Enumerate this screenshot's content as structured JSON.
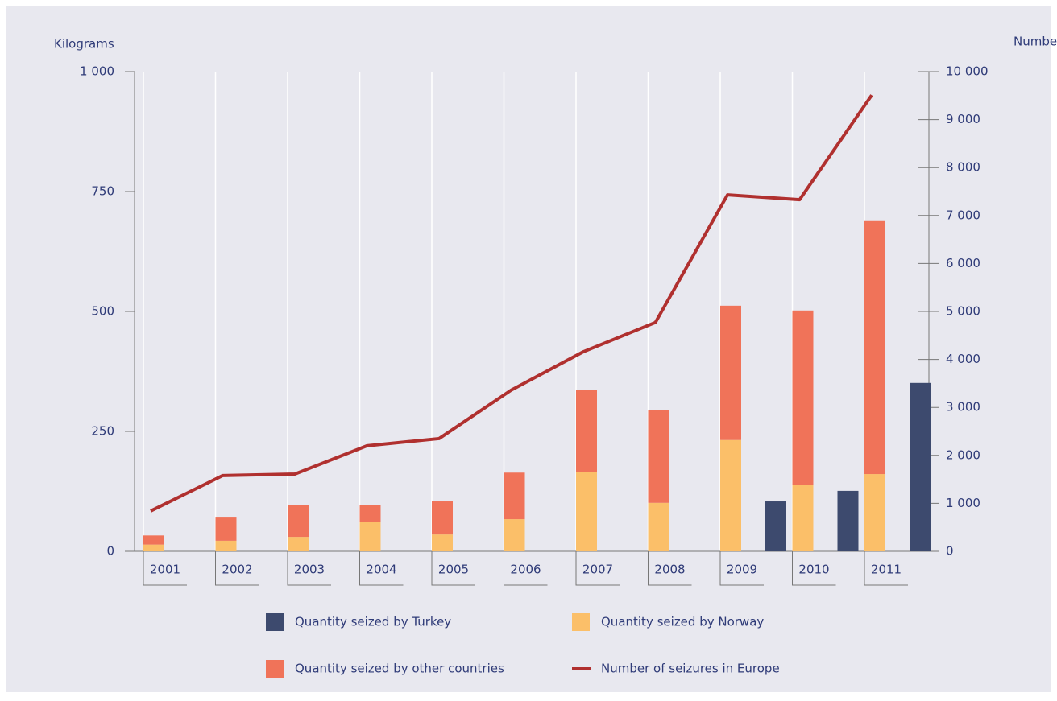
{
  "chart_data": {
    "type": "bar",
    "y_label": "Kilograms",
    "y2_label": "Number",
    "categories": [
      "2001",
      "2002",
      "2003",
      "2004",
      "2005",
      "2006",
      "2007",
      "2008",
      "2009",
      "2010",
      "2011"
    ],
    "series": [
      {
        "name": "Quantity seized by Turkey",
        "color": "#3d4a6e",
        "values": [
          null,
          null,
          null,
          null,
          null,
          null,
          null,
          null,
          104,
          126,
          351
        ]
      },
      {
        "name": "Quantity seized by Norway",
        "color": "#fbbf69",
        "values": [
          14,
          22,
          30,
          62,
          35,
          67,
          166,
          101,
          232,
          138,
          161
        ]
      },
      {
        "name": "Quantity seized by other countries",
        "color": "#f07359",
        "values": [
          19,
          50,
          66,
          35,
          69,
          97,
          170,
          193,
          280,
          364,
          529
        ]
      },
      {
        "name": "Number of seizures in Europe",
        "type": "line",
        "axis": "y2",
        "color": "#b0302f",
        "values": [
          840,
          1580,
          1610,
          2200,
          2350,
          3360,
          4160,
          4770,
          7430,
          7330,
          9510
        ]
      }
    ],
    "ylim": [
      0,
      1000
    ],
    "yticks": [
      0,
      250,
      500,
      750,
      {
        "value": 1000,
        "label": "1 000"
      }
    ],
    "y2lim": [
      0,
      10000
    ],
    "y2ticks": [
      0,
      {
        "value": 1000,
        "label": "1 000"
      },
      {
        "value": 2000,
        "label": "2 000"
      },
      {
        "value": 3000,
        "label": "3 000"
      },
      {
        "value": 4000,
        "label": "4 000"
      },
      {
        "value": 5000,
        "label": "5 000"
      },
      {
        "value": 6000,
        "label": "6 000"
      },
      {
        "value": 7000,
        "label": "7 000"
      },
      {
        "value": 8000,
        "label": "8 000"
      },
      {
        "value": 9000,
        "label": "9 000"
      },
      {
        "value": 10000,
        "label": "10 000"
      }
    ],
    "grid": true
  }
}
